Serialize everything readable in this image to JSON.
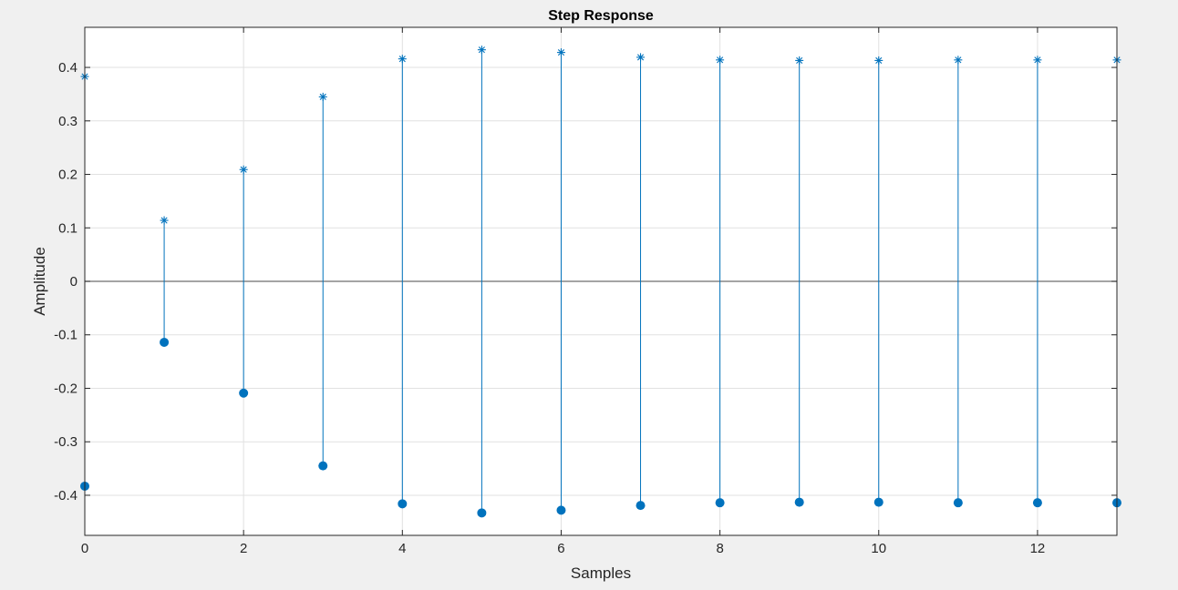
{
  "chart_data": {
    "type": "scatter",
    "title": "Step Response",
    "xlabel": "Samples",
    "ylabel": "Amplitude",
    "xlim": [
      0,
      13
    ],
    "ylim": [
      -0.475,
      0.475
    ],
    "x_ticks": [
      0,
      2,
      4,
      6,
      8,
      10,
      12
    ],
    "y_ticks": [
      0.4,
      0.3,
      0.2,
      0.1,
      0,
      -0.1,
      -0.2,
      -0.3,
      -0.4
    ],
    "y_tick_labels": [
      "0.4",
      "0.3",
      "0.2",
      "0.1",
      "0",
      "-0.1",
      "-0.2",
      "-0.3",
      "-0.4"
    ],
    "grid": true,
    "zero_line": true,
    "x": [
      0,
      1,
      2,
      3,
      4,
      5,
      6,
      7,
      8,
      9,
      10,
      11,
      12,
      13
    ],
    "series": [
      {
        "marker": "asterisk",
        "color": "#0072bd",
        "values": [
          0.383,
          0.114,
          0.209,
          0.345,
          0.416,
          0.433,
          0.428,
          0.419,
          0.414,
          0.413,
          0.413,
          0.414,
          0.414,
          0.414
        ]
      },
      {
        "marker": "filled-circle",
        "color": "#0072bd",
        "values": [
          -0.383,
          -0.114,
          -0.209,
          -0.345,
          -0.416,
          -0.433,
          -0.428,
          -0.419,
          -0.414,
          -0.413,
          -0.413,
          -0.414,
          -0.414,
          -0.414
        ]
      }
    ],
    "stem_color": "#0072bd",
    "grid_color": "#e1e1e1",
    "axis_color": "#262626",
    "zero_line_color": "#6e6e6e",
    "figure_background": "#f0f0f0",
    "axes_background": "#ffffff"
  }
}
